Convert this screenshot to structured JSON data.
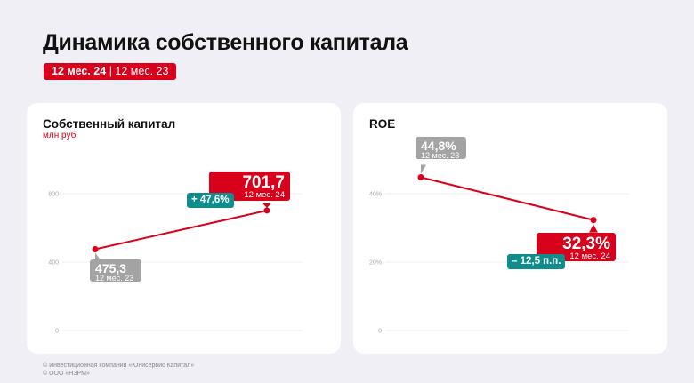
{
  "header": {
    "title": "Динамика собственного капитала",
    "period_current": "12 мес. 24",
    "period_separator": " | ",
    "period_previous": "12 мес. 23"
  },
  "colors": {
    "accent": "#d9001b",
    "delta": "#0f8c8c",
    "previous": "#a3a3a3",
    "grid": "#eeeeee"
  },
  "chart_data": [
    {
      "type": "line",
      "title": "Собственный капитал",
      "unit": "млн руб.",
      "categories": [
        "12 мес. 23",
        "12 мес. 24"
      ],
      "values": [
        475.3,
        701.7
      ],
      "labels": [
        "475,3",
        "701,7"
      ],
      "delta": "+ 47,6%",
      "yticks": [
        0,
        400,
        800
      ],
      "ytick_labels": [
        "0",
        "400",
        "800"
      ],
      "ylim": [
        0,
        1000
      ],
      "grid": true
    },
    {
      "type": "line",
      "title": "ROE",
      "unit": "",
      "categories": [
        "12 мес. 23",
        "12 мес. 24"
      ],
      "values": [
        44.8,
        32.3
      ],
      "labels": [
        "44,8%",
        "32,3%"
      ],
      "delta": "– 12,5 п.п.",
      "yticks": [
        0,
        20,
        40
      ],
      "ytick_labels": [
        "0",
        "20%",
        "40%"
      ],
      "ylim": [
        0,
        50
      ],
      "grid": true
    }
  ],
  "footer": {
    "line1": "© Инвестиционная компания «Юнисервис Капитал»",
    "line2": "© ООО «НЗРМ»"
  }
}
